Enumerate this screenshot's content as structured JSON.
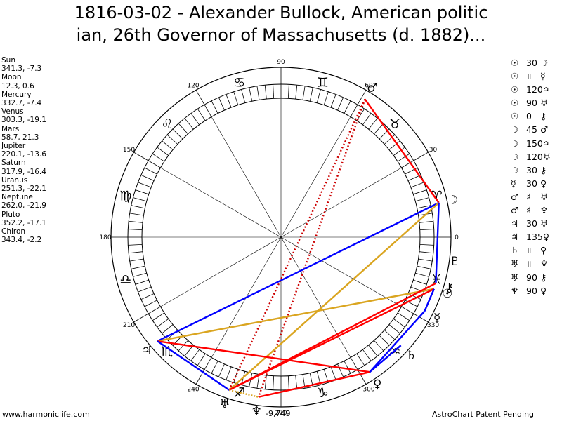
{
  "title_line1": "1816-03-02 - Alexander Bullock, American politic",
  "title_line2": "ian, 26th Governor of Massachusetts (d. 1882)...",
  "planets": [
    {
      "name": "Sun",
      "glyph": "☉",
      "coords": "341.3, -7.3",
      "lon": 341.3
    },
    {
      "name": "Moon",
      "glyph": "☽",
      "coords": "12.3, 0.6",
      "lon": 12.3
    },
    {
      "name": "Mercury",
      "glyph": "☿",
      "coords": "332.7, -7.4",
      "lon": 332.7
    },
    {
      "name": "Venus",
      "glyph": "♀",
      "coords": "303.3, -19.1",
      "lon": 303.3
    },
    {
      "name": "Mars",
      "glyph": "♂",
      "coords": "58.7, 21.3",
      "lon": 58.7
    },
    {
      "name": "Jupiter",
      "glyph": "♃",
      "coords": "220.1, -13.6",
      "lon": 220.1
    },
    {
      "name": "Saturn",
      "glyph": "♄",
      "coords": "317.9, -16.4",
      "lon": 317.9
    },
    {
      "name": "Uranus",
      "glyph": "♅",
      "coords": "251.3, -22.1",
      "lon": 251.3
    },
    {
      "name": "Neptune",
      "glyph": "♆",
      "coords": "262.0, -21.9",
      "lon": 262.0
    },
    {
      "name": "Pluto",
      "glyph": "♇",
      "coords": "352.2, -17.1",
      "lon": 352.2
    },
    {
      "name": "Chiron",
      "glyph": "⚷",
      "coords": "343.4, -2.2",
      "lon": 343.4
    }
  ],
  "aspects": [
    {
      "p1": "☉",
      "angle": "30",
      "p2": "☽"
    },
    {
      "p1": "☉",
      "angle": "॥",
      "p2": "☿"
    },
    {
      "p1": "☉",
      "angle": "120",
      "p2": "♃"
    },
    {
      "p1": "☉",
      "angle": "90",
      "p2": "♅"
    },
    {
      "p1": "☉",
      "angle": "0",
      "p2": "⚷"
    },
    {
      "p1": "☽",
      "angle": "45",
      "p2": "♂"
    },
    {
      "p1": "☽",
      "angle": "150",
      "p2": "♃"
    },
    {
      "p1": "☽",
      "angle": "120",
      "p2": "♅"
    },
    {
      "p1": "☽",
      "angle": "30",
      "p2": "⚷"
    },
    {
      "p1": "☿",
      "angle": "30",
      "p2": "♀"
    },
    {
      "p1": "♂",
      "angle": "♯",
      "p2": "♅"
    },
    {
      "p1": "♂",
      "angle": "♯",
      "p2": "♆"
    },
    {
      "p1": "♃",
      "angle": "30",
      "p2": "♅"
    },
    {
      "p1": "♃",
      "angle": "135",
      "p2": "♀"
    },
    {
      "p1": "♄",
      "angle": "॥",
      "p2": "♀"
    },
    {
      "p1": "♅",
      "angle": "॥",
      "p2": "♆"
    },
    {
      "p1": "♅",
      "angle": "90",
      "p2": "⚷"
    },
    {
      "p1": "♆",
      "angle": "90",
      "p2": "♀"
    }
  ],
  "degree_labels": [
    "0",
    "30",
    "60",
    "90",
    "120",
    "150",
    "180",
    "210",
    "240",
    "270",
    "300",
    "330"
  ],
  "zodiac_signs": [
    "♈",
    "♉",
    "♊",
    "♋",
    "♌",
    "♍",
    "♎",
    "♏",
    "♐",
    "♑",
    "♒",
    "♓"
  ],
  "extra_label": "-9,749",
  "footer_left": "www.harmoniclife.com",
  "footer_right": "AstroChart Patent Pending",
  "colors": {
    "red": "#ff0000",
    "blue": "#0000ff",
    "gold": "#daa520",
    "dark_red": "#cc0000"
  }
}
